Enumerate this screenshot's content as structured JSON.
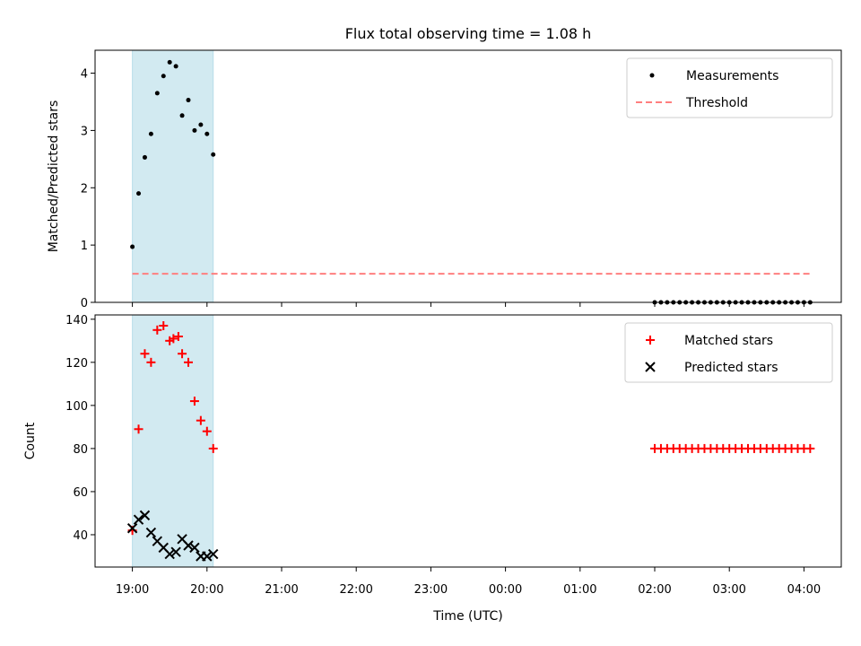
{
  "chart_data": {
    "title": "Flux total observing time = 1.08 h",
    "xlabel": "Time (UTC)",
    "x_tick_labels": [
      "19:00",
      "20:00",
      "21:00",
      "22:00",
      "23:00",
      "00:00",
      "01:00",
      "02:00",
      "03:00",
      "04:00"
    ],
    "x_ticks": [
      "19:00",
      "20:00",
      "21:00",
      "22:00",
      "23:00",
      "00:00",
      "01:00",
      "02:00",
      "03:00",
      "04:00"
    ],
    "xlim": [
      "18:30",
      "04:30"
    ],
    "shaded_span": {
      "from": "19:00",
      "to": "20:05",
      "color": "#add8e6"
    },
    "panels": [
      {
        "type": "scatter",
        "ylabel": "Matched/Predicted stars",
        "ylim": [
          0,
          4.4
        ],
        "y_ticks": [
          0,
          1,
          2,
          3,
          4
        ],
        "legend": "top-right",
        "series": [
          {
            "name": "Measurements",
            "marker": "dot",
            "color": "#000000",
            "x": [
              "19:00",
              "19:05",
              "19:10",
              "19:15",
              "19:20",
              "19:25",
              "19:30",
              "19:35",
              "19:40",
              "19:45",
              "19:50",
              "19:55",
              "20:00",
              "20:05",
              "02:00",
              "02:05",
              "02:10",
              "02:15",
              "02:20",
              "02:25",
              "02:30",
              "02:35",
              "02:40",
              "02:45",
              "02:50",
              "02:55",
              "03:00",
              "03:05",
              "03:10",
              "03:15",
              "03:20",
              "03:25",
              "03:30",
              "03:35",
              "03:40",
              "03:45",
              "03:50",
              "03:55",
              "04:00",
              "04:05"
            ],
            "y": [
              0.97,
              1.9,
              2.53,
              2.94,
              3.65,
              3.95,
              4.19,
              4.12,
              3.26,
              3.53,
              3.0,
              3.1,
              2.94,
              2.58,
              0,
              0,
              0,
              0,
              0,
              0,
              0,
              0,
              0,
              0,
              0,
              0,
              0,
              0,
              0,
              0,
              0,
              0,
              0,
              0,
              0,
              0,
              0,
              0,
              0,
              0
            ]
          },
          {
            "name": "Threshold",
            "style": "dashed",
            "color": "#ff7f7f",
            "x": [
              "19:00",
              "04:05"
            ],
            "y": [
              0.5,
              0.5
            ]
          }
        ]
      },
      {
        "type": "scatter",
        "ylabel": "Count",
        "ylim": [
          25,
          142
        ],
        "y_ticks": [
          40,
          60,
          80,
          100,
          120,
          140
        ],
        "legend": "top-right",
        "series": [
          {
            "name": "Matched stars",
            "marker": "plus",
            "color": "#ff0000",
            "x": [
              "19:00",
              "19:05",
              "19:10",
              "19:15",
              "19:20",
              "19:25",
              "19:30",
              "19:33",
              "19:37",
              "19:40",
              "19:45",
              "19:50",
              "19:55",
              "20:00",
              "20:05",
              "02:00",
              "02:05",
              "02:10",
              "02:15",
              "02:20",
              "02:25",
              "02:30",
              "02:35",
              "02:40",
              "02:45",
              "02:50",
              "02:55",
              "03:00",
              "03:05",
              "03:10",
              "03:15",
              "03:20",
              "03:25",
              "03:30",
              "03:35",
              "03:40",
              "03:45",
              "03:50",
              "03:55",
              "04:00",
              "04:05"
            ],
            "y": [
              42,
              89,
              124,
              120,
              135,
              137,
              130,
              131,
              132,
              124,
              120,
              102,
              93,
              88,
              80,
              80,
              80,
              80,
              80,
              80,
              80,
              80,
              80,
              80,
              80,
              80,
              80,
              80,
              80,
              80,
              80,
              80,
              80,
              80,
              80,
              80,
              80,
              80,
              80,
              80,
              80
            ]
          },
          {
            "name": "Predicted stars",
            "marker": "x",
            "color": "#000000",
            "x": [
              "19:00",
              "19:05",
              "19:10",
              "19:15",
              "19:20",
              "19:25",
              "19:30",
              "19:35",
              "19:40",
              "19:45",
              "19:50",
              "19:55",
              "20:00",
              "20:05"
            ],
            "y": [
              43,
              47,
              49,
              41,
              37,
              34,
              31,
              32,
              38,
              35,
              34,
              30,
              30,
              31
            ]
          }
        ]
      }
    ]
  }
}
